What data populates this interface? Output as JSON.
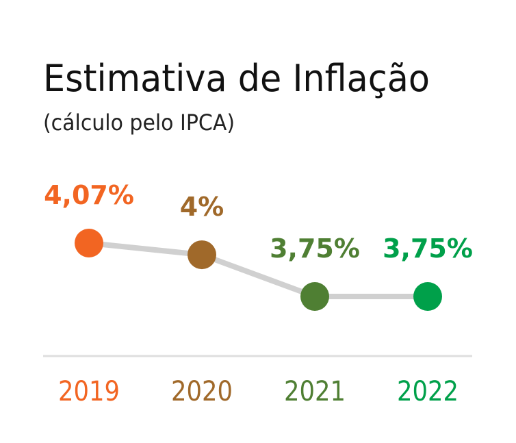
{
  "chart_data": {
    "type": "line",
    "title": "Estimativa de Inflação",
    "subtitle": "(cálculo pelo IPCA)",
    "categories": [
      "2019",
      "2020",
      "2021",
      "2022"
    ],
    "values": [
      4.07,
      4,
      3.75,
      3.75
    ],
    "value_labels": [
      "4,07%",
      "4%",
      "3,75%",
      "3,75%"
    ],
    "colors": [
      "#f26522",
      "#a0692a",
      "#4f7f33",
      "#00a04a"
    ],
    "line_color": "#d0d0d0"
  }
}
